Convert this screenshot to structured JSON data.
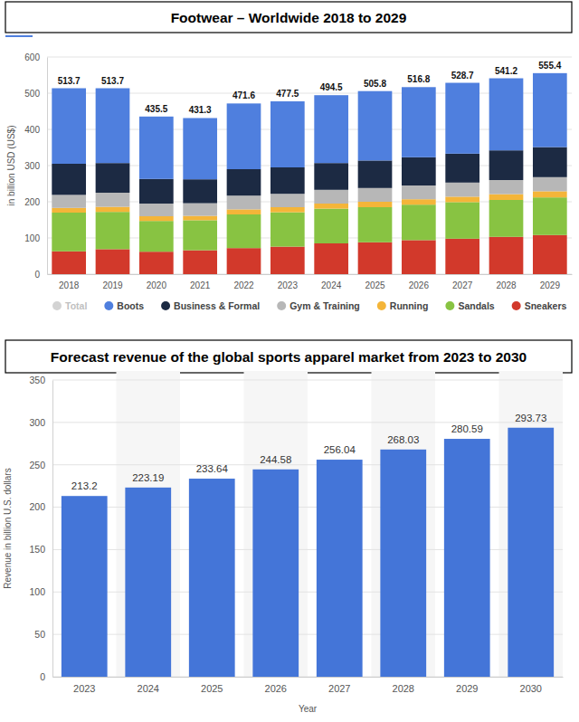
{
  "chart_data": [
    {
      "type": "bar",
      "stacked": true,
      "title": "Footwear – Worldwide 2018 to 2029",
      "y_label": "in billion USD (US$)",
      "categories": [
        "2018",
        "2019",
        "2020",
        "2021",
        "2022",
        "2023",
        "2024",
        "2025",
        "2026",
        "2027",
        "2028",
        "2029"
      ],
      "series": [
        {
          "name": "Total",
          "type": "label",
          "color": "#d3d3d3",
          "values": [
            513.7,
            513.7,
            435.5,
            431.3,
            471.6,
            477.5,
            494.5,
            505.8,
            516.8,
            528.7,
            541.2,
            555.4
          ]
        },
        {
          "name": "Boots",
          "color": "#4f7fde",
          "values": [
            208.7,
            206.7,
            172.5,
            169.3,
            181.6,
            182.5,
            187.5,
            191.8,
            193.8,
            195.7,
            199.2,
            204.4
          ]
        },
        {
          "name": "Business & Formal",
          "color": "#1c2a43",
          "values": [
            86,
            82,
            68,
            66,
            73,
            73,
            74,
            76,
            78,
            80,
            82,
            83
          ]
        },
        {
          "name": "Gym & Training",
          "color": "#b7b7b7",
          "values": [
            36,
            39,
            35,
            35,
            38,
            37,
            38,
            38,
            38,
            39,
            39,
            39
          ]
        },
        {
          "name": "Running",
          "color": "#f4b539",
          "values": [
            13,
            14,
            13,
            12,
            14,
            14,
            14,
            15,
            15,
            15,
            16,
            17
          ]
        },
        {
          "name": "Sandals",
          "color": "#88c342",
          "values": [
            107,
            103,
            85,
            83,
            93,
            95,
            96,
            97,
            98,
            101,
            102,
            104
          ]
        },
        {
          "name": "Sneakers",
          "color": "#d2392b",
          "values": [
            63,
            69,
            62,
            66,
            72,
            76,
            85,
            88,
            94,
            98,
            103,
            108
          ]
        }
      ],
      "ylim": [
        0,
        600
      ],
      "yticks": [
        0,
        100,
        200,
        300,
        400,
        500,
        600
      ],
      "grid": true,
      "legend": "bottom"
    },
    {
      "type": "bar",
      "title": "Forecast revenue of the global sports apparel market from 2023 to 2030",
      "x_label": "Year",
      "y_label": "Revenue in billion U.S. dollars",
      "categories": [
        "2023",
        "2024",
        "2025",
        "2026",
        "2027",
        "2028",
        "2029",
        "2030"
      ],
      "values": [
        213.2,
        223.19,
        233.64,
        244.58,
        256.04,
        268.03,
        280.59,
        293.73
      ],
      "color": "#4475d8",
      "ylim": [
        0,
        350
      ],
      "yticks": [
        0,
        50,
        100,
        150,
        200,
        250,
        300,
        350
      ],
      "grid": true,
      "data_labels": true
    }
  ]
}
